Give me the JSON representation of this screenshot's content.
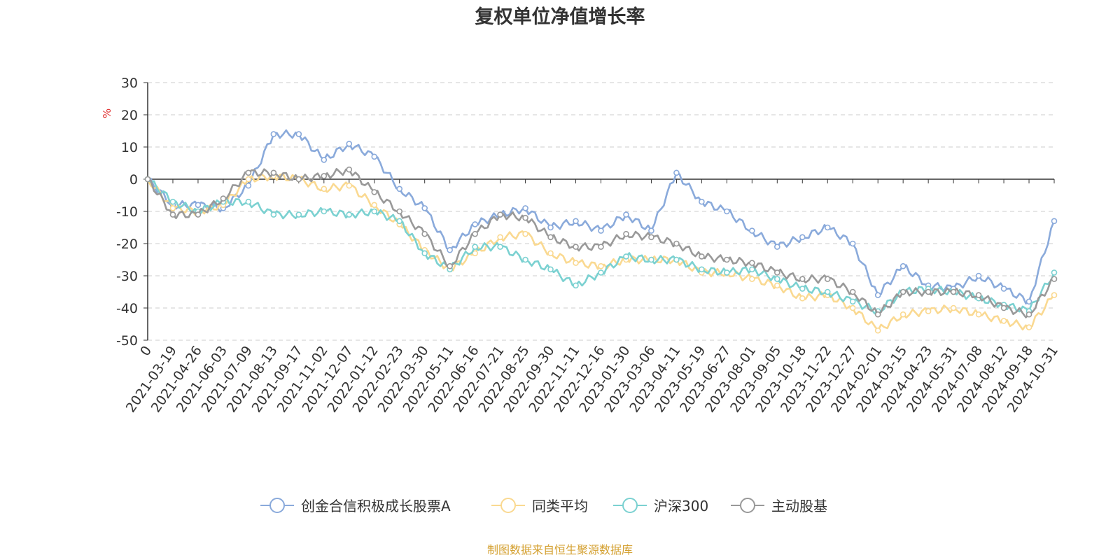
{
  "chart_data": {
    "type": "line",
    "title": "复权单位净值增长率",
    "ylabel": "%",
    "ylim": [
      -50,
      30
    ],
    "yticks": [
      30,
      20,
      10,
      0,
      -10,
      -20,
      -30,
      -40,
      -50
    ],
    "grid": true,
    "legend_position": "bottom",
    "categories": [
      "0",
      "2021-03-19",
      "2021-04-26",
      "2021-06-03",
      "2021-07-09",
      "2021-08-13",
      "2021-09-17",
      "2021-11-02",
      "2021-12-07",
      "2022-01-12",
      "2022-02-23",
      "2022-03-30",
      "2022-05-11",
      "2022-06-16",
      "2022-07-21",
      "2022-08-25",
      "2022-09-30",
      "2022-11-11",
      "2022-12-16",
      "2023-01-30",
      "2023-03-06",
      "2023-04-11",
      "2023-05-19",
      "2023-06-27",
      "2023-08-01",
      "2023-09-05",
      "2023-10-18",
      "2023-11-22",
      "2023-12-27",
      "2024-02-01",
      "2024-03-15",
      "2024-04-23",
      "2024-05-31",
      "2024-07-08",
      "2024-08-12",
      "2024-09-18",
      "2024-10-31"
    ],
    "series": [
      {
        "name": "创金合信积极成长股票A",
        "color": "#8aaadb",
        "values": [
          0,
          -8,
          -8,
          -9,
          -2,
          14,
          14,
          6,
          11,
          7,
          -3,
          -9,
          -22,
          -14,
          -11,
          -9,
          -15,
          -13,
          -16,
          -11,
          -16,
          2,
          -7,
          -10,
          -16,
          -21,
          -18,
          -15,
          -20,
          -36,
          -27,
          -33,
          -34,
          -30,
          -34,
          -38,
          -13
        ]
      },
      {
        "name": "同类平均",
        "color": "#fad991",
        "values": [
          0,
          -9,
          -10,
          -8,
          0,
          1,
          0,
          -3,
          -2,
          -8,
          -14,
          -22,
          -28,
          -23,
          -18,
          -17,
          -23,
          -26,
          -27,
          -25,
          -25,
          -25,
          -29,
          -29,
          -31,
          -33,
          -37,
          -36,
          -40,
          -47,
          -42,
          -41,
          -40,
          -42,
          -44,
          -46,
          -36
        ]
      },
      {
        "name": "沪深300",
        "color": "#7bd1d1",
        "values": [
          0,
          -7,
          -10,
          -7,
          -7,
          -11,
          -11,
          -10,
          -11,
          -10,
          -13,
          -23,
          -28,
          -21,
          -21,
          -25,
          -28,
          -33,
          -29,
          -24,
          -25,
          -25,
          -28,
          -29,
          -28,
          -31,
          -34,
          -35,
          -38,
          -41,
          -35,
          -34,
          -35,
          -37,
          -39,
          -41,
          -29
        ]
      },
      {
        "name": "主动股基",
        "color": "#999999",
        "values": [
          0,
          -11,
          -11,
          -6,
          2,
          2,
          0,
          1,
          3,
          -4,
          -10,
          -17,
          -27,
          -17,
          -11,
          -12,
          -18,
          -21,
          -21,
          -17,
          -18,
          -20,
          -24,
          -25,
          -26,
          -29,
          -31,
          -31,
          -35,
          -42,
          -35,
          -35,
          -35,
          -36,
          -40,
          -42,
          -31
        ]
      }
    ]
  },
  "footer": {
    "source_text": "制图数据来自恒生聚源数据库"
  }
}
